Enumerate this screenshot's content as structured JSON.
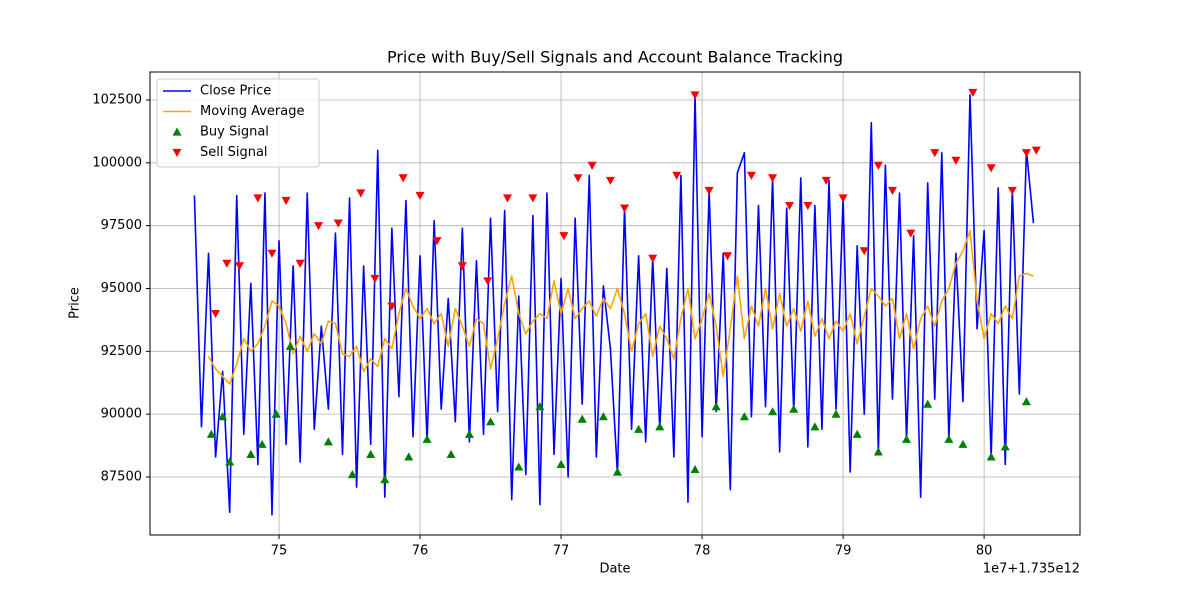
{
  "chart_data": {
    "type": "line",
    "title": "Price with Buy/Sell Signals and Account Balance Tracking",
    "x_label": "Date",
    "y_label": "Price",
    "x_offset_label": "1e7+1.735e12",
    "xlim": [
      74.085,
      80.68
    ],
    "xticks": [
      75,
      76,
      77,
      78,
      79,
      80
    ],
    "ylim": [
      85192,
      103614
    ],
    "yticks": [
      87500,
      90000,
      92500,
      95000,
      97500,
      100000,
      102500
    ],
    "grid": true,
    "legend": "upper left",
    "series": [
      {
        "name": "Close Price",
        "type": "line",
        "color": "#0000ff",
        "x": [
          74.4,
          74.45,
          74.5,
          74.55,
          74.6,
          74.65,
          74.7,
          74.75,
          74.8,
          74.85,
          74.9,
          74.95,
          75.0,
          75.05,
          75.1,
          75.15,
          75.2,
          75.25,
          75.3,
          75.35,
          75.4,
          75.45,
          75.5,
          75.55,
          75.6,
          75.65,
          75.7,
          75.75,
          75.8,
          75.85,
          75.9,
          75.95,
          76.0,
          76.05,
          76.1,
          76.15,
          76.2,
          76.25,
          76.3,
          76.35,
          76.4,
          76.45,
          76.5,
          76.55,
          76.6,
          76.65,
          76.7,
          76.75,
          76.8,
          76.85,
          76.9,
          76.95,
          77.0,
          77.05,
          77.1,
          77.15,
          77.2,
          77.25,
          77.3,
          77.35,
          77.4,
          77.45,
          77.5,
          77.55,
          77.6,
          77.65,
          77.7,
          77.75,
          77.8,
          77.85,
          77.9,
          77.95,
          78.0,
          78.05,
          78.1,
          78.15,
          78.2,
          78.25,
          78.3,
          78.35,
          78.4,
          78.45,
          78.5,
          78.55,
          78.6,
          78.65,
          78.7,
          78.75,
          78.8,
          78.85,
          78.9,
          78.95,
          79.0,
          79.05,
          79.1,
          79.15,
          79.2,
          79.25,
          79.3,
          79.35,
          79.4,
          79.45,
          79.5,
          79.55,
          79.6,
          79.65,
          79.7,
          79.75,
          79.8,
          79.85,
          79.9,
          79.95,
          80.0,
          80.05,
          80.1,
          80.15,
          80.2,
          80.25,
          80.3,
          80.35
        ],
        "values": [
          98700,
          89500,
          96400,
          88300,
          91700,
          86100,
          98700,
          89200,
          95200,
          88000,
          98800,
          86000,
          96900,
          88800,
          95900,
          88100,
          98800,
          89400,
          93500,
          90200,
          97200,
          88400,
          98600,
          87100,
          95900,
          88800,
          100500,
          86700,
          97400,
          90700,
          98500,
          89100,
          96300,
          88900,
          97700,
          90200,
          94600,
          89700,
          97400,
          88900,
          96100,
          89200,
          97800,
          90100,
          98100,
          86600,
          94700,
          87600,
          97900,
          86400,
          98800,
          88400,
          95400,
          87500,
          97800,
          90400,
          99500,
          88300,
          95100,
          92600,
          87600,
          98200,
          89400,
          96300,
          88900,
          96200,
          89400,
          95800,
          88300,
          99500,
          86500,
          102700,
          89100,
          98900,
          90100,
          96400,
          87000,
          99600,
          100400,
          89900,
          98300,
          90300,
          99400,
          88500,
          98200,
          90100,
          99400,
          88700,
          98300,
          89400,
          99300,
          90200,
          98600,
          87700,
          96700,
          90000,
          101600,
          88500,
          99900,
          90600,
          98800,
          89000,
          97100,
          86700,
          99200,
          90600,
          100400,
          89000,
          96400,
          90500,
          102700,
          93400,
          97300,
          88300,
          99000,
          88000,
          98900,
          90800,
          100500,
          97600
        ]
      },
      {
        "name": "Moving Average",
        "type": "line",
        "color": "#ffa500",
        "x": [
          74.4,
          74.45,
          74.5,
          74.55,
          74.6,
          74.65,
          74.7,
          74.75,
          74.8,
          74.85,
          74.9,
          74.95,
          75.0,
          75.05,
          75.1,
          75.15,
          75.2,
          75.25,
          75.3,
          75.35,
          75.4,
          75.45,
          75.5,
          75.55,
          75.6,
          75.65,
          75.7,
          75.75,
          75.8,
          75.85,
          75.9,
          75.95,
          76.0,
          76.05,
          76.1,
          76.15,
          76.2,
          76.25,
          76.3,
          76.35,
          76.4,
          76.45,
          76.5,
          76.55,
          76.6,
          76.65,
          76.7,
          76.75,
          76.8,
          76.85,
          76.9,
          76.95,
          77.0,
          77.05,
          77.1,
          77.15,
          77.2,
          77.25,
          77.3,
          77.35,
          77.4,
          77.45,
          77.5,
          77.55,
          77.6,
          77.65,
          77.7,
          77.75,
          77.8,
          77.85,
          77.9,
          77.95,
          78.0,
          78.05,
          78.1,
          78.15,
          78.2,
          78.25,
          78.3,
          78.35,
          78.4,
          78.45,
          78.5,
          78.55,
          78.6,
          78.65,
          78.7,
          78.75,
          78.8,
          78.85,
          78.9,
          78.95,
          79.0,
          79.05,
          79.1,
          79.15,
          79.2,
          79.25,
          79.3,
          79.35,
          79.4,
          79.45,
          79.5,
          79.55,
          79.6,
          79.65,
          79.7,
          79.75,
          79.8,
          79.85,
          79.9,
          79.95,
          80.0,
          80.05,
          80.1,
          80.15,
          80.2,
          80.25,
          80.3,
          80.35
        ],
        "values": [
          null,
          null,
          92300,
          91800,
          91500,
          91200,
          92000,
          93000,
          92500,
          92800,
          93500,
          94500,
          94300,
          93600,
          92400,
          93100,
          92500,
          93200,
          92800,
          93700,
          93600,
          92400,
          92300,
          92700,
          91700,
          92200,
          91900,
          93000,
          92600,
          94000,
          95000,
          94300,
          93800,
          94200,
          93600,
          94000,
          92700,
          94200,
          93500,
          92700,
          93800,
          93600,
          91800,
          93000,
          94400,
          95500,
          94000,
          93200,
          93700,
          94000,
          93800,
          95300,
          94000,
          95000,
          93800,
          94200,
          94500,
          93900,
          94600,
          94200,
          95000,
          94000,
          92500,
          93600,
          94000,
          92300,
          93500,
          93000,
          92200,
          93800,
          95000,
          93000,
          93800,
          94800,
          93500,
          91500,
          93400,
          95500,
          93000,
          94300,
          93500,
          95000,
          93400,
          94800,
          93500,
          94200,
          93300,
          94500,
          93100,
          93800,
          93000,
          93700,
          93300,
          94000,
          92800,
          93900,
          95000,
          94700,
          94300,
          94600,
          93000,
          94000,
          92600,
          93800,
          94300,
          93500,
          94500,
          95000,
          96000,
          96500,
          97300,
          94500,
          93000,
          94000,
          93600,
          94300,
          93800,
          95500,
          95600,
          95500
        ]
      },
      {
        "name": "Buy Signal",
        "type": "scatter",
        "marker": "^",
        "color": "#008000",
        "x": [
          74.52,
          74.6,
          74.65,
          74.8,
          74.88,
          74.98,
          75.08,
          75.35,
          75.52,
          75.65,
          75.75,
          75.92,
          76.05,
          76.22,
          76.35,
          76.5,
          76.7,
          76.85,
          77.0,
          77.15,
          77.3,
          77.4,
          77.55,
          77.7,
          77.95,
          78.1,
          78.3,
          78.5,
          78.65,
          78.8,
          78.95,
          79.1,
          79.25,
          79.45,
          79.6,
          79.75,
          79.85,
          80.05,
          80.15,
          80.3
        ],
        "values": [
          89200,
          89900,
          88100,
          88400,
          88800,
          90000,
          92700,
          88900,
          87600,
          88400,
          87400,
          88300,
          89000,
          88400,
          89200,
          89700,
          87900,
          90300,
          88000,
          89800,
          89900,
          87700,
          89400,
          89500,
          87800,
          90300,
          89900,
          90100,
          90200,
          89500,
          90000,
          89200,
          88500,
          89000,
          90400,
          89000,
          88800,
          88300,
          88700,
          90500
        ]
      },
      {
        "name": "Sell Signal",
        "type": "scatter",
        "marker": "v",
        "color": "#ff0000",
        "x": [
          74.55,
          74.63,
          74.72,
          74.85,
          74.95,
          75.05,
          75.15,
          75.28,
          75.42,
          75.58,
          75.68,
          75.8,
          75.88,
          76.0,
          76.12,
          76.3,
          76.48,
          76.62,
          76.8,
          77.02,
          77.12,
          77.22,
          77.35,
          77.45,
          77.65,
          77.82,
          77.95,
          78.05,
          78.18,
          78.35,
          78.5,
          78.62,
          78.75,
          78.88,
          79.0,
          79.15,
          79.25,
          79.35,
          79.48,
          79.65,
          79.8,
          79.92,
          80.05,
          80.2,
          80.3,
          80.37
        ],
        "values": [
          94000,
          96000,
          95900,
          98600,
          96400,
          98500,
          96000,
          97500,
          97600,
          98800,
          95400,
          94300,
          99400,
          98700,
          96900,
          95900,
          95300,
          98600,
          98600,
          97100,
          99400,
          99900,
          99300,
          98200,
          96200,
          99500,
          102700,
          98900,
          96300,
          99500,
          99400,
          98300,
          98300,
          99300,
          98600,
          96500,
          99900,
          98900,
          97200,
          100400,
          100100,
          102800,
          99800,
          98900,
          100400,
          100500
        ]
      }
    ]
  }
}
